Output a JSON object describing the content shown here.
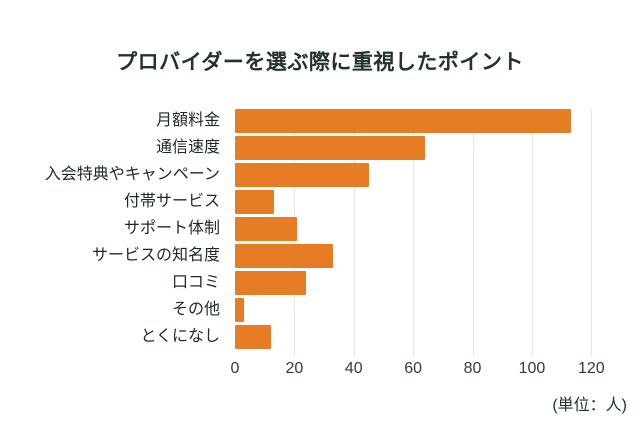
{
  "title": "プロバイダーを選ぶ際に重視したポイント",
  "unit_label": "(単位：人)",
  "colors": {
    "background": "#ffffff",
    "bar": "#e67c23",
    "title_text": "#22332c",
    "label_text": "#1f2a26",
    "axis_text": "#333d38",
    "gridline": "#e7e7e7"
  },
  "chart_data": {
    "type": "bar",
    "orientation": "horizontal",
    "title": "プロバイダーを選ぶ際に重視したポイント",
    "categories": [
      "月額料金",
      "通信速度",
      "入会特典やキャンペーン",
      "付帯サービス",
      "サポート体制",
      "サービスの知名度",
      "口コミ",
      "その他",
      "とくになし"
    ],
    "values": [
      113,
      64,
      45,
      13,
      21,
      33,
      24,
      3,
      12
    ],
    "xlabel": "(単位：人)",
    "ylabel": "",
    "xlim": [
      0,
      130
    ],
    "xticks": [
      0,
      20,
      40,
      60,
      80,
      100,
      120
    ],
    "grid": true,
    "legend": false
  }
}
